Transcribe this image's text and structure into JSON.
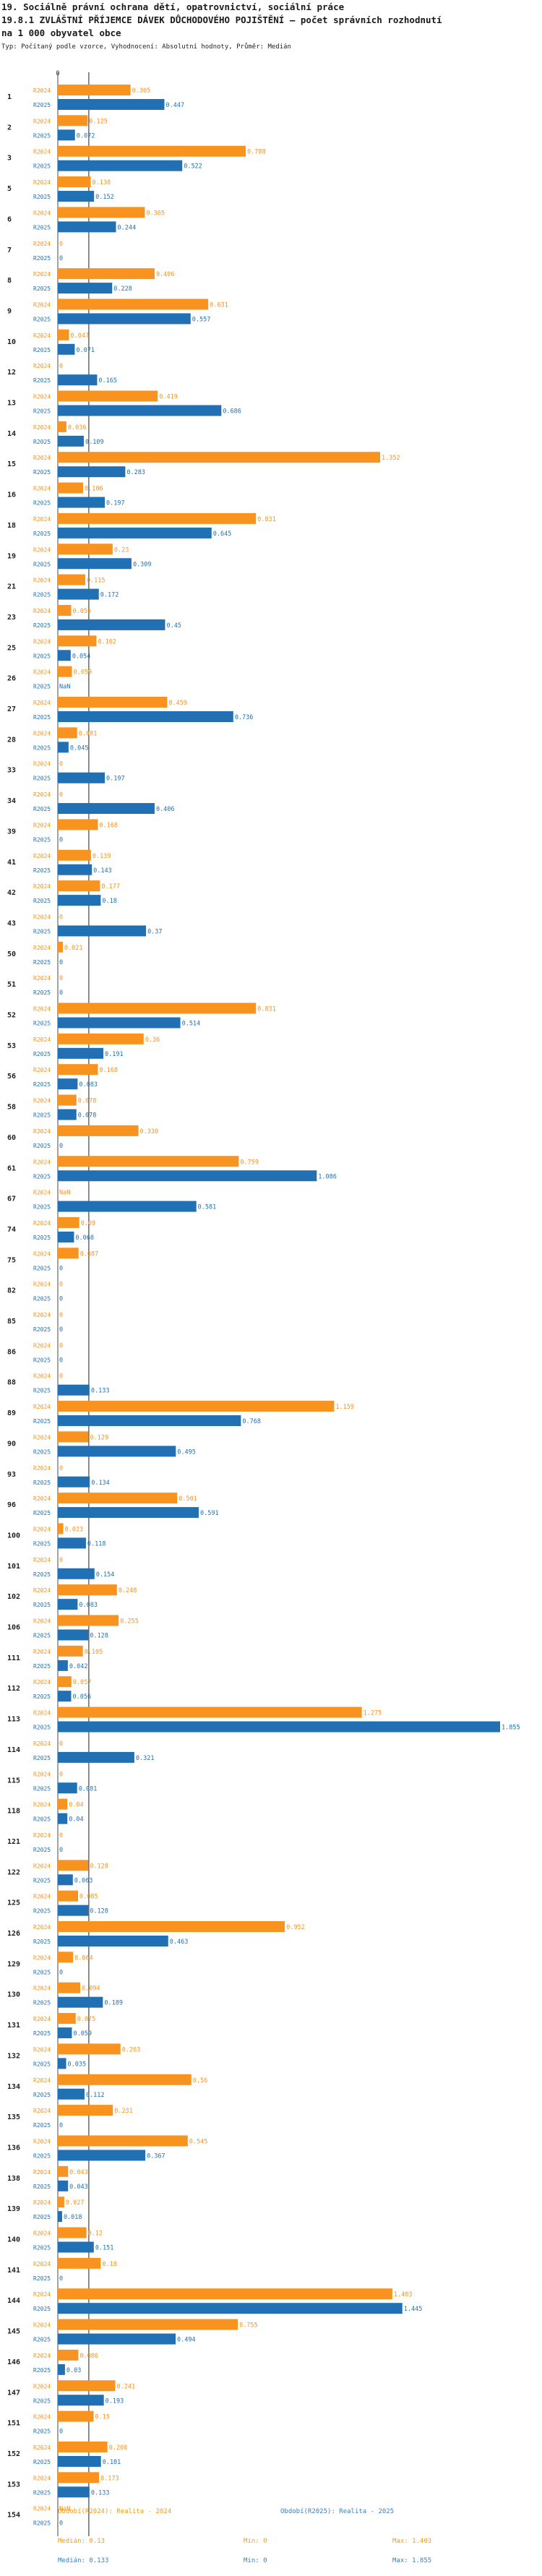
{
  "header": {
    "title_line1": "19. Sociálně právní ochrana dětí, opatrovnictví, sociální práce",
    "title_line2": "19.8.1 ZVLÁŠTNÍ PŘÍJEMCE DÁVEK DŮCHODOVÉHO POJIŠTĚNÍ – počet správních rozhodnutí",
    "title_line3": "na 1 000 obyvatel obce",
    "subtitle": "Typ: Počítaný podle vzorce, Vyhodnocení: Absolutní hodnoty, Průměr: Medián"
  },
  "colors": {
    "orange": "#f7931e",
    "blue": "#2170b4",
    "label": "#666666"
  },
  "footer": {
    "series1_title": "Období(R2024): Realita - 2024",
    "series2_title": "Období(R2025): Realita - 2025",
    "series1_median": "Medián: 0.13",
    "series1_min": "Min: 0",
    "series1_max": "Max: 1.403",
    "series2_median": "Medián: 0.133",
    "series2_min": "Min: 0",
    "series2_max": "Max: 1.855"
  },
  "chart_data": {
    "type": "bar",
    "orientation": "horizontal",
    "xlim": [
      0,
      1.855
    ],
    "median_line": 0.13,
    "categories": [
      "1",
      "2",
      "3",
      "5",
      "6",
      "7",
      "8",
      "9",
      "10",
      "12",
      "13",
      "14",
      "15",
      "16",
      "18",
      "19",
      "21",
      "23",
      "25",
      "26",
      "27",
      "28",
      "33",
      "34",
      "39",
      "41",
      "42",
      "43",
      "50",
      "51",
      "52",
      "53",
      "56",
      "58",
      "60",
      "61",
      "67",
      "74",
      "75",
      "82",
      "85",
      "86",
      "88",
      "89",
      "90",
      "93",
      "96",
      "100",
      "101",
      "102",
      "106",
      "111",
      "112",
      "113",
      "114",
      "115",
      "118",
      "121",
      "122",
      "125",
      "126",
      "129",
      "130",
      "131",
      "132",
      "134",
      "135",
      "136",
      "138",
      "139",
      "140",
      "141",
      "144",
      "145",
      "146",
      "147",
      "151",
      "152",
      "153",
      "154"
    ],
    "series": [
      {
        "name": "R2024",
        "labels": [
          "0.305",
          "0.125",
          "0.788",
          "0.138",
          "0.365",
          "0",
          "0.406",
          "0.631",
          "0.047",
          "0",
          "0.419",
          "0.036",
          "1.352",
          "0.106",
          "0.831",
          "0.23",
          "0.115",
          "0.056",
          "0.162",
          "0.059",
          "0.459",
          "0.081",
          "0",
          "0",
          "0.168",
          "0.139",
          "0.177",
          "0",
          "0.021",
          "0",
          "0.831",
          "0.36",
          "0.168",
          "0.078",
          "0.338",
          "0.759",
          "NaN",
          "0.09",
          "0.087",
          "0",
          "0",
          "0",
          "0",
          "1.159",
          "0.129",
          "0",
          "0.501",
          "0.023",
          "0",
          "0.248",
          "0.255",
          "0.105",
          "0.057",
          "1.275",
          "0",
          "0",
          "0.04",
          "0",
          "0.128",
          "0.085",
          "0.952",
          "0.064",
          "0.094",
          "0.075",
          "0.263",
          "0.56",
          "0.231",
          "0.545",
          "0.043",
          "0.027",
          "0.12",
          "0.18",
          "1.403",
          "0.755",
          "0.086",
          "0.241",
          "0.15",
          "0.208",
          "0.173",
          "NaN"
        ]
      },
      {
        "name": "R2025",
        "labels": [
          "0.447",
          "0.072",
          "0.522",
          "0.152",
          "0.244",
          "0",
          "0.228",
          "0.557",
          "0.071",
          "0.165",
          "0.686",
          "0.109",
          "0.283",
          "0.197",
          "0.645",
          "0.309",
          "0.172",
          "0.45",
          "0.054",
          "NaN",
          "0.736",
          "0.045",
          "0.197",
          "0.406",
          "0",
          "0.143",
          "0.18",
          "0.37",
          "0",
          "0",
          "0.514",
          "0.191",
          "0.083",
          "0.078",
          "0",
          "1.086",
          "0.581",
          "0.068",
          "0",
          "0",
          "0",
          "0",
          "0.133",
          "0.768",
          "0.495",
          "0.134",
          "0.591",
          "0.118",
          "0.154",
          "0.083",
          "0.128",
          "0.042",
          "0.056",
          "1.855",
          "0.321",
          "0.081",
          "0.04",
          "0",
          "0.063",
          "0.128",
          "0.463",
          "0",
          "0.189",
          "0.059",
          "0.035",
          "0.112",
          "0",
          "0.367",
          "0.043",
          "0.018",
          "0.151",
          "0",
          "1.445",
          "0.494",
          "0.03",
          "0.193",
          "0",
          "0.181",
          "0.133",
          "0"
        ]
      }
    ]
  }
}
